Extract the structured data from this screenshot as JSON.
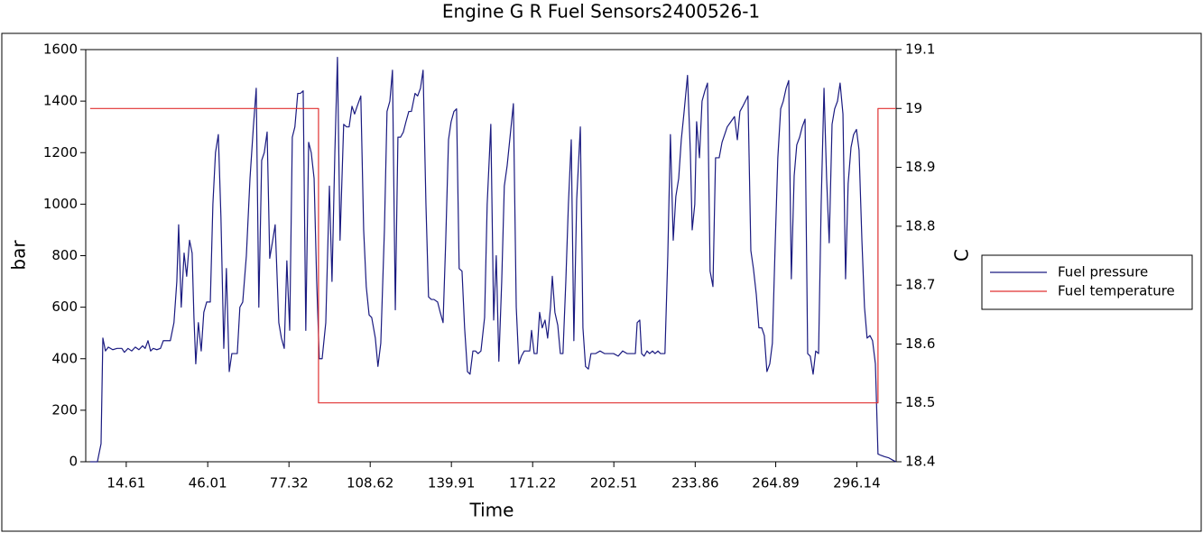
{
  "chart_data": {
    "type": "line",
    "title": "Engine G R  Fuel Sensors2400526-1",
    "xlabel": "Time",
    "ylabel": "bar",
    "y2label": "C",
    "xlim": [
      -1.0,
      311.3
    ],
    "xticks": [
      14.61,
      46.01,
      77.32,
      108.62,
      139.91,
      171.22,
      202.51,
      233.86,
      264.89,
      296.14
    ],
    "ylim": [
      0,
      1600
    ],
    "yticks": [
      0,
      200,
      400,
      600,
      800,
      1000,
      1200,
      1400,
      1600
    ],
    "y2lim": [
      18.4,
      19.1
    ],
    "y2ticks": [
      18.4,
      18.5,
      18.6,
      18.7,
      18.8,
      18.9,
      19,
      19.1
    ],
    "legend": "right",
    "series": [
      {
        "name": "Fuel pressure",
        "color": "#1a1a80",
        "x": [
          0.7,
          3.5,
          4.9,
          5.6,
          6.6,
          7.7,
          9.4,
          11.1,
          12.9,
          13.9,
          15.3,
          16.7,
          18.1,
          19.5,
          20.9,
          21.9,
          23.0,
          24.0,
          25.0,
          26.4,
          27.8,
          28.9,
          30.6,
          31.6,
          33.0,
          34.1,
          34.8,
          35.8,
          36.9,
          37.9,
          39.0,
          40.0,
          40.7,
          41.4,
          42.4,
          43.5,
          44.5,
          45.6,
          47.0,
          48.0,
          49.0,
          50.1,
          51.1,
          52.2,
          53.2,
          54.3,
          55.3,
          56.3,
          57.4,
          58.4,
          59.5,
          60.9,
          62.3,
          63.6,
          64.7,
          65.7,
          66.8,
          67.8,
          68.9,
          69.9,
          70.9,
          72.0,
          73.4,
          74.4,
          75.5,
          76.5,
          77.6,
          78.6,
          79.6,
          80.7,
          81.7,
          82.8,
          83.8,
          84.9,
          85.9,
          87.0,
          88.0,
          89.0,
          90.1,
          91.5,
          92.9,
          93.9,
          95.0,
          96.0,
          97.0,
          98.4,
          99.5,
          100.5,
          101.6,
          102.6,
          103.6,
          105.0,
          106.1,
          107.1,
          108.2,
          109.2,
          110.6,
          111.6,
          112.7,
          114.1,
          115.1,
          116.2,
          117.2,
          118.3,
          119.3,
          120.3,
          121.4,
          122.4,
          123.5,
          124.5,
          125.9,
          126.9,
          128.0,
          129.0,
          130.1,
          131.1,
          132.2,
          133.2,
          134.6,
          135.6,
          136.7,
          137.7,
          138.8,
          139.8,
          140.9,
          141.9,
          142.9,
          144.0,
          145.0,
          146.1,
          147.1,
          148.2,
          149.2,
          150.2,
          151.3,
          152.7,
          153.7,
          155.1,
          156.2,
          157.2,
          158.2,
          159.3,
          160.3,
          161.4,
          162.4,
          163.8,
          164.9,
          165.9,
          166.9,
          168.0,
          169.0,
          170.1,
          170.8,
          171.8,
          172.9,
          173.9,
          174.9,
          176.0,
          177.0,
          178.1,
          178.8,
          179.8,
          180.9,
          181.9,
          182.9,
          184.0,
          185.0,
          186.1,
          187.1,
          188.2,
          189.6,
          190.6,
          191.6,
          192.7,
          193.7,
          195.5,
          197.2,
          198.9,
          200.7,
          202.4,
          204.2,
          205.9,
          207.6,
          209.4,
          210.8,
          211.5,
          212.5,
          213.2,
          214.2,
          215.3,
          216.3,
          217.4,
          218.4,
          219.5,
          220.5,
          222.2,
          223.3,
          224.3,
          225.4,
          226.4,
          227.5,
          228.5,
          229.5,
          230.9,
          232.0,
          232.7,
          233.7,
          234.4,
          235.5,
          236.5,
          237.6,
          238.6,
          239.6,
          240.7,
          241.7,
          243.1,
          244.2,
          245.2,
          246.2,
          247.6,
          249.0,
          250.1,
          251.1,
          252.2,
          253.2,
          254.2,
          255.3,
          256.3,
          257.4,
          258.4,
          259.5,
          260.5,
          261.5,
          262.6,
          263.6,
          264.7,
          265.7,
          266.8,
          267.8,
          268.9,
          269.9,
          270.9,
          272.0,
          273.0,
          274.1,
          275.1,
          276.2,
          277.2,
          278.2,
          279.3,
          280.3,
          281.4,
          282.4,
          283.5,
          284.5,
          285.5,
          286.6,
          287.6,
          288.7,
          289.7,
          290.8,
          291.8,
          292.8,
          293.9,
          294.9,
          296.0,
          297.0,
          298.1,
          299.1,
          300.1,
          301.2,
          302.2,
          303.3,
          304.3,
          305.4,
          306.8,
          308.5,
          310.2,
          311.3
        ],
        "values": [
          0,
          0,
          70,
          480,
          430,
          445,
          435,
          440,
          440,
          425,
          440,
          430,
          445,
          435,
          450,
          440,
          470,
          430,
          440,
          435,
          440,
          470,
          470,
          470,
          540,
          700,
          920,
          600,
          810,
          720,
          860,
          810,
          560,
          380,
          540,
          430,
          580,
          620,
          620,
          1000,
          1200,
          1270,
          950,
          440,
          750,
          350,
          420,
          420,
          420,
          600,
          620,
          800,
          1100,
          1300,
          1450,
          600,
          1170,
          1200,
          1280,
          790,
          850,
          920,
          540,
          480,
          440,
          780,
          510,
          1260,
          1300,
          1430,
          1430,
          1440,
          510,
          1240,
          1200,
          1100,
          700,
          400,
          400,
          540,
          1070,
          700,
          1200,
          1570,
          860,
          1310,
          1300,
          1300,
          1380,
          1350,
          1380,
          1420,
          900,
          680,
          570,
          560,
          480,
          370,
          460,
          900,
          1360,
          1400,
          1520,
          590,
          1260,
          1260,
          1280,
          1320,
          1360,
          1360,
          1430,
          1420,
          1450,
          1520,
          1000,
          640,
          630,
          630,
          620,
          580,
          540,
          850,
          1250,
          1320,
          1360,
          1370,
          750,
          740,
          520,
          350,
          340,
          430,
          430,
          420,
          430,
          560,
          1000,
          1310,
          550,
          800,
          390,
          700,
          1070,
          1150,
          1250,
          1390,
          600,
          380,
          410,
          430,
          430,
          430,
          510,
          420,
          420,
          580,
          520,
          550,
          480,
          600,
          720,
          580,
          530,
          420,
          420,
          700,
          1000,
          1250,
          470,
          1020,
          1300,
          520,
          370,
          360,
          420,
          420,
          430,
          420,
          420,
          420,
          410,
          430,
          420,
          420,
          420,
          540,
          550,
          420,
          410,
          430,
          420,
          430,
          420,
          430,
          420,
          420,
          800,
          1270,
          860,
          1030,
          1100,
          1250,
          1350,
          1500,
          1200,
          900,
          1000,
          1320,
          1180,
          1400,
          1440,
          1470,
          740,
          680,
          1180,
          1180,
          1240,
          1270,
          1300,
          1320,
          1340,
          1250,
          1360,
          1380,
          1400,
          1420,
          820,
          750,
          650,
          520,
          520,
          490,
          350,
          380,
          460,
          850,
          1180,
          1370,
          1400,
          1450,
          1480,
          710,
          1110,
          1230,
          1260,
          1300,
          1330,
          420,
          410,
          340,
          430,
          420,
          1000,
          1450,
          1100,
          850,
          1310,
          1370,
          1400,
          1470,
          1350,
          710,
          1080,
          1220,
          1270,
          1290,
          1210,
          860,
          600,
          480,
          490,
          470,
          380,
          30,
          25,
          20,
          15,
          5,
          0
        ]
      },
      {
        "name": "Fuel temperature",
        "color": "#e03030",
        "axis": "y2",
        "x": [
          0.7,
          88.7,
          88.7,
          304.3,
          304.3,
          311.3
        ],
        "values": [
          19,
          19,
          18.5,
          18.5,
          19,
          19
        ]
      }
    ]
  }
}
